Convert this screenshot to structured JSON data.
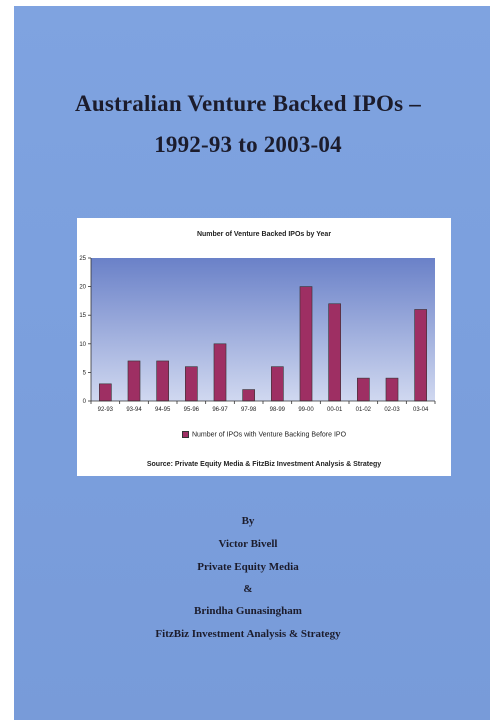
{
  "title": {
    "line1": "Australian Venture Backed IPOs –",
    "line2": "1992-93 to 2003-04"
  },
  "chart_data": {
    "type": "bar",
    "title": "Number of Venture Backed IPOs by Year",
    "categories": [
      "92-93",
      "93-94",
      "94-95",
      "95-96",
      "96-97",
      "97-98",
      "98-99",
      "99-00",
      "00-01",
      "01-02",
      "02-03",
      "03-04"
    ],
    "series": [
      {
        "name": "Number of IPOs with Venture Backing Before IPO",
        "values": [
          3,
          7,
          7,
          6,
          10,
          2,
          6,
          20,
          17,
          4,
          4,
          16
        ]
      }
    ],
    "yticks": [
      0,
      5,
      10,
      15,
      20,
      25
    ],
    "ylim": [
      0,
      25
    ],
    "grid": false,
    "legend_position": "bottom",
    "colors": {
      "bar": "#9e2f63",
      "plot_bg_top": "#6a81c8",
      "plot_bg_bottom": "#d0d8f0"
    },
    "source": "Source: Private Equity Media & FitzBiz Investment Analysis & Strategy"
  },
  "credits": {
    "by": "By",
    "author1": "Victor Bivell",
    "org1": "Private Equity Media",
    "amp": "&",
    "author2": "Brindha Gunasingham",
    "org2": "FitzBiz Investment Analysis & Strategy"
  }
}
